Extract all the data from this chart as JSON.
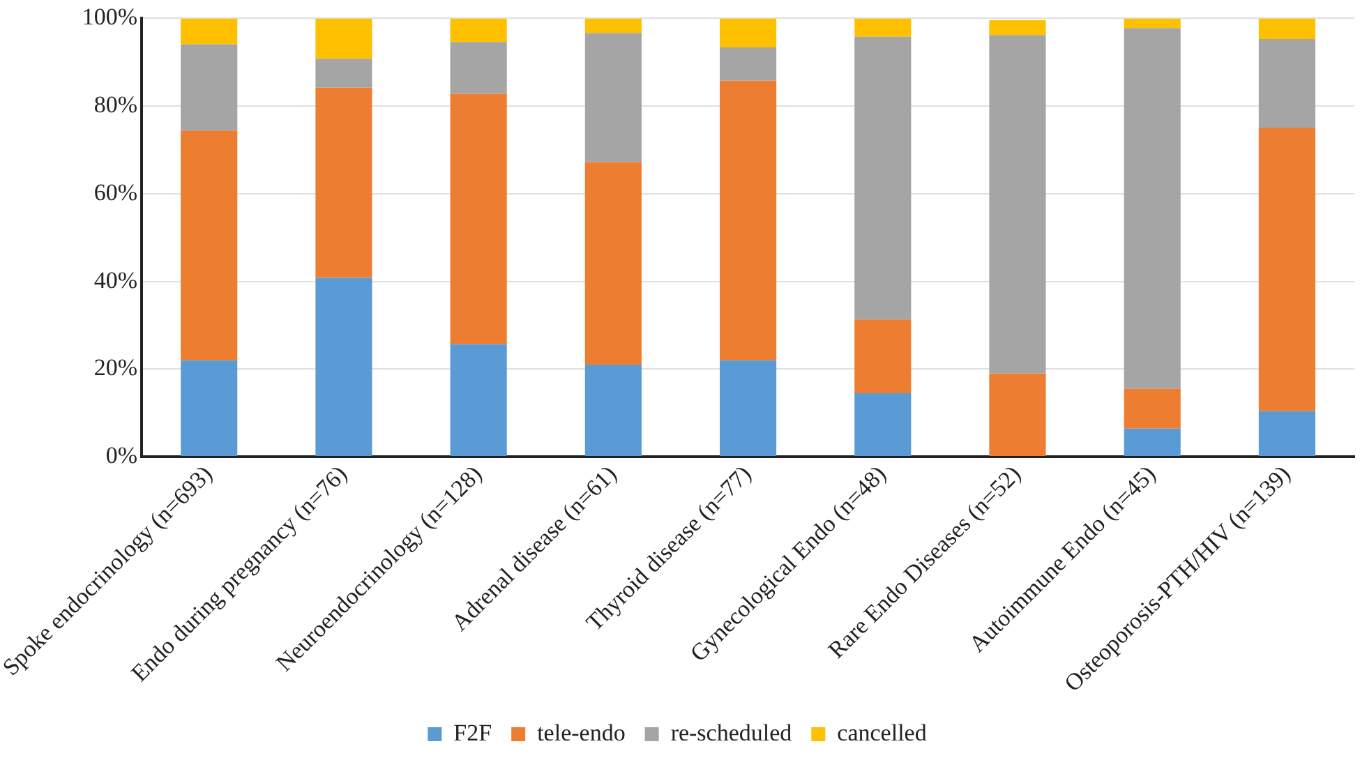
{
  "chart_data": {
    "type": "bar",
    "stacked": true,
    "categories": [
      "Spoke endocrinology (n=693)",
      "Endo during pregnancy (n=76)",
      "Neuroendocrinology (n=128)",
      "Adrenal disease (n=61)",
      "Thyroid disease (n=77)",
      "Gynecological Endo (n=48)",
      "Rare Endo Diseases (n=52)",
      "Autoimmune Endo (n=45)",
      "Osteoporosis-PTH/HIV (n=139)"
    ],
    "series": [
      {
        "name": "F2F",
        "color": "#5b9bd5",
        "values": [
          22,
          40.8,
          25.7,
          21,
          22,
          14.5,
          0,
          6.4,
          10.4
        ]
      },
      {
        "name": "tele-endo",
        "color": "#ed7d31",
        "values": [
          52.4,
          43.4,
          57.1,
          46.2,
          63.8,
          16.8,
          19,
          9.1,
          64.7
        ]
      },
      {
        "name": "re-scheduled",
        "color": "#a5a5a5",
        "values": [
          19.7,
          6.6,
          11.8,
          29.5,
          7.6,
          64.5,
          77.2,
          82.3,
          20.2
        ]
      },
      {
        "name": "cancelled",
        "color": "#ffc000",
        "values": [
          5.9,
          9.2,
          5.4,
          3.3,
          6.6,
          4.2,
          3.4,
          2.2,
          4.7
        ]
      }
    ],
    "ylim": [
      0,
      100
    ],
    "yticks": [
      {
        "value": 0,
        "label": "0%"
      },
      {
        "value": 20,
        "label": "20%"
      },
      {
        "value": 40,
        "label": "40%"
      },
      {
        "value": 60,
        "label": "60%"
      },
      {
        "value": 80,
        "label": "80%"
      },
      {
        "value": 100,
        "label": "100%"
      }
    ],
    "grid": "y",
    "legend": "bottom"
  }
}
